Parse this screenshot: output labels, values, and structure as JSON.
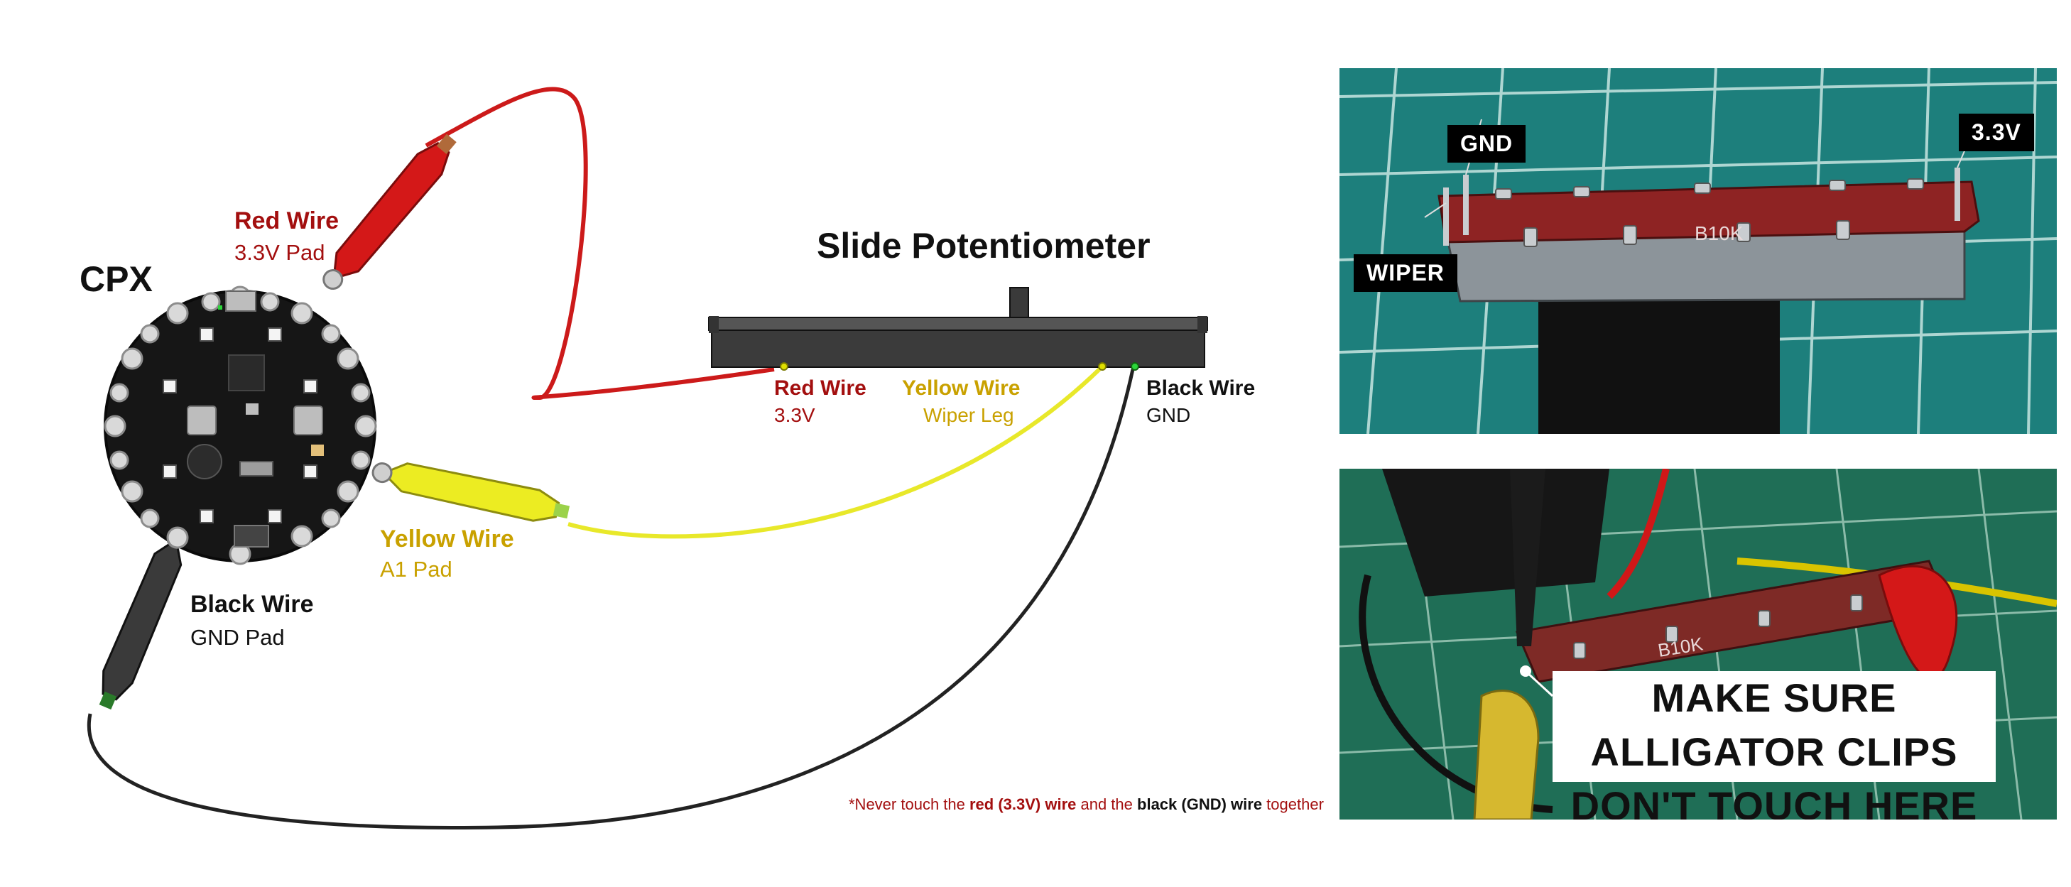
{
  "title": "Slide Potentiometer",
  "board_label": "CPX",
  "wires": {
    "red_board": {
      "name": "Red Wire",
      "pad": "3.3V Pad"
    },
    "yellow_board": {
      "name": "Yellow Wire",
      "pad": "A1 Pad"
    },
    "black_board": {
      "name": "Black Wire",
      "pad": "GND Pad"
    },
    "red_pot": {
      "name": "Red Wire",
      "pin": "3.3V"
    },
    "yellow_pot": {
      "name": "Yellow Wire",
      "pin": "Wiper Leg"
    },
    "black_pot": {
      "name": "Black Wire",
      "pin": "GND"
    }
  },
  "warning": {
    "prefix": "*Never touch the ",
    "red_part": "red (3.3V) wire",
    "middle": " and the ",
    "black_part": "black (GND) wire",
    "suffix": " together"
  },
  "photo_top": {
    "tags": {
      "gnd": "GND",
      "v33": "3.3V",
      "wiper": "WIPER"
    },
    "component_marking": "B10K"
  },
  "photo_bottom": {
    "component_marking": "B10K",
    "callout_line1": "MAKE SURE ALLIGATOR CLIPS",
    "callout_line2": "DON'T TOUCH HERE"
  },
  "colors": {
    "red": "#a30f0f",
    "yellow": "#c9a100",
    "black": "#111111",
    "red_wire": "#cc1a1a",
    "yellow_wire": "#e8e82a",
    "black_wire": "#222222",
    "cutting_mat": "#1d7f7c"
  }
}
